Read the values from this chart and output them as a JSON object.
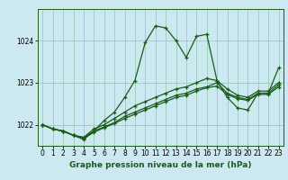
{
  "title": "Graphe pression niveau de la mer (hPa)",
  "bg_color": "#cce8f0",
  "line_color": "#1a5c1a",
  "grid_color": "#99ccbb",
  "xlim": [
    -0.5,
    23.5
  ],
  "ylim": [
    1021.5,
    1024.75
  ],
  "yticks": [
    1022,
    1023,
    1024
  ],
  "xticks": [
    0,
    1,
    2,
    3,
    4,
    5,
    6,
    7,
    8,
    9,
    10,
    11,
    12,
    13,
    14,
    15,
    16,
    17,
    18,
    19,
    20,
    21,
    22,
    23
  ],
  "series": [
    [
      1022.0,
      1021.9,
      1021.85,
      1021.75,
      1021.65,
      1021.85,
      1022.1,
      1022.3,
      1022.65,
      1023.05,
      1023.95,
      1024.35,
      1024.3,
      1024.0,
      1023.6,
      1024.1,
      1024.15,
      1023.05,
      1022.65,
      1022.4,
      1022.35,
      1022.75,
      1022.75,
      1023.35
    ],
    [
      1022.0,
      1021.9,
      1021.85,
      1021.75,
      1021.7,
      1021.9,
      1022.0,
      1022.15,
      1022.3,
      1022.45,
      1022.55,
      1022.65,
      1022.75,
      1022.85,
      1022.9,
      1023.0,
      1023.1,
      1023.05,
      1022.85,
      1022.7,
      1022.65,
      1022.8,
      1022.8,
      1023.0
    ],
    [
      1022.0,
      1021.9,
      1021.85,
      1021.75,
      1021.7,
      1021.85,
      1021.95,
      1022.05,
      1022.2,
      1022.3,
      1022.4,
      1022.5,
      1022.6,
      1022.7,
      1022.75,
      1022.85,
      1022.9,
      1023.0,
      1022.75,
      1022.65,
      1022.6,
      1022.75,
      1022.75,
      1022.95
    ],
    [
      1022.0,
      1021.9,
      1021.85,
      1021.75,
      1021.68,
      1021.82,
      1021.93,
      1022.03,
      1022.15,
      1022.25,
      1022.35,
      1022.45,
      1022.55,
      1022.65,
      1022.7,
      1022.8,
      1022.88,
      1022.92,
      1022.72,
      1022.62,
      1022.58,
      1022.72,
      1022.72,
      1022.9
    ]
  ],
  "ylabel_fontsize": 6.5,
  "tick_fontsize": 5.5,
  "xlabel_fontsize": 6.5
}
